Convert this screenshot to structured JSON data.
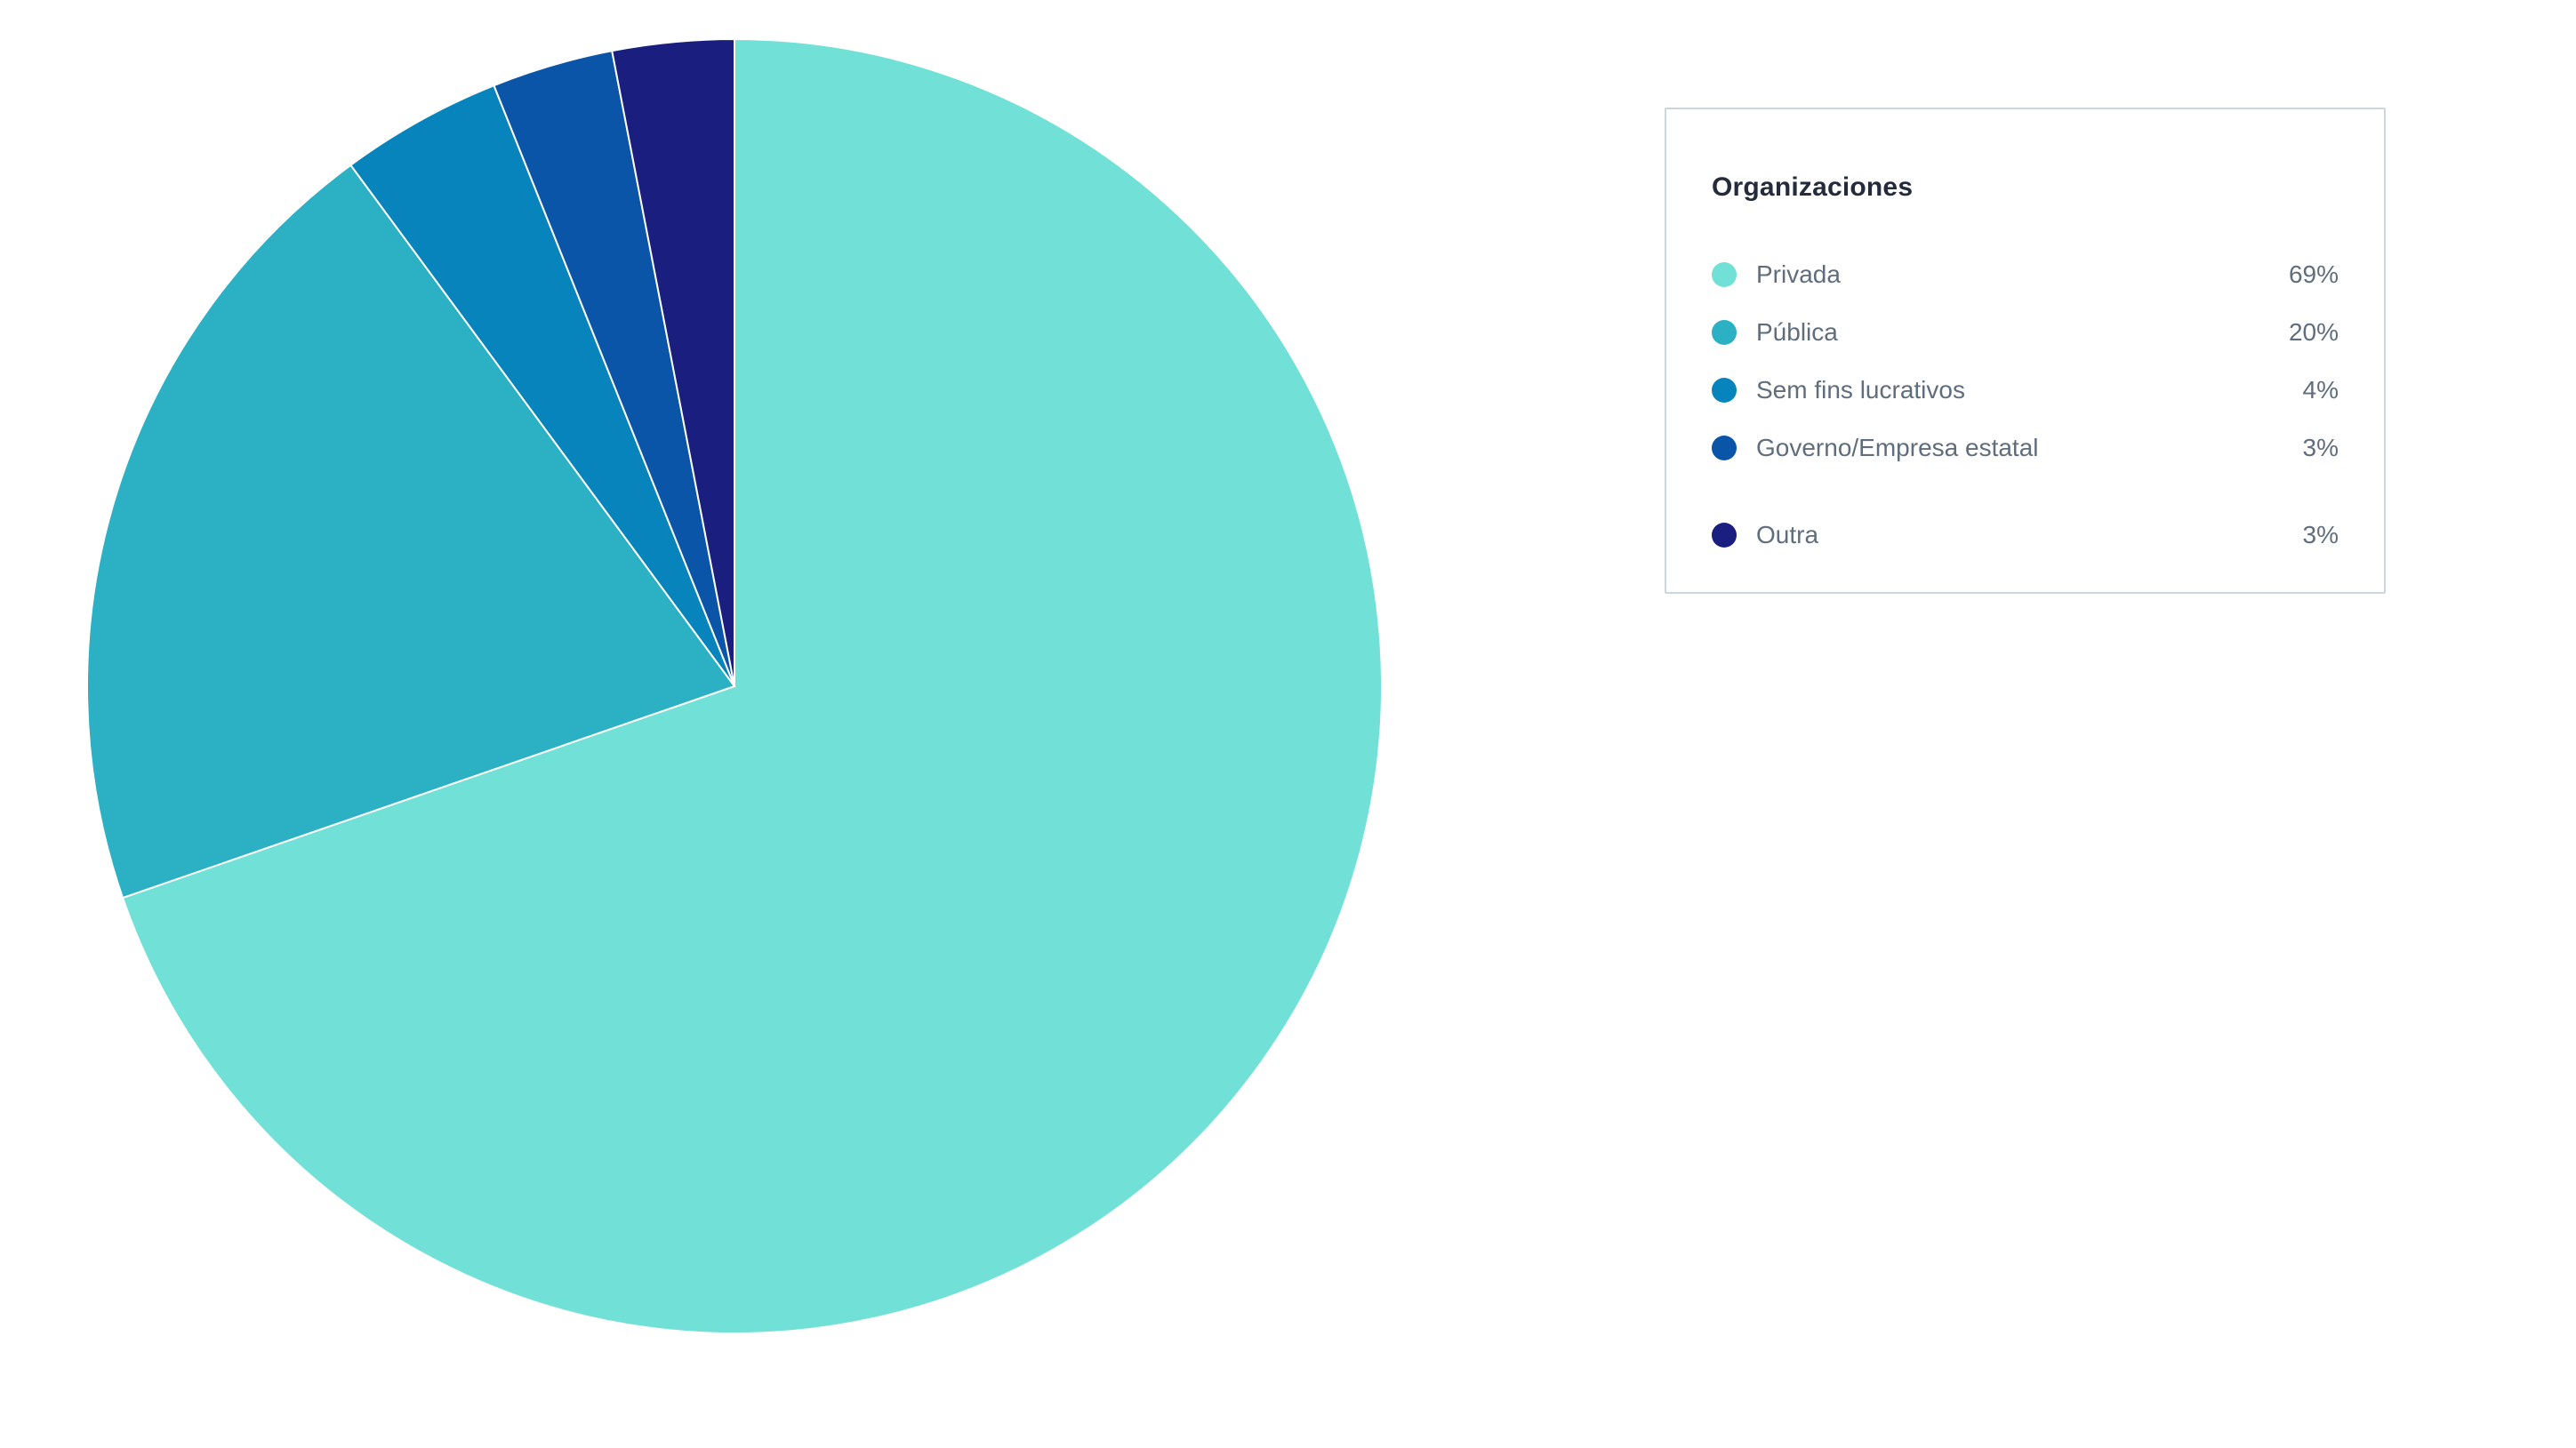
{
  "chart_data": {
    "type": "pie",
    "title": "Organizaciones",
    "categories": [
      "Privada",
      "Pública",
      "Sem fins lucrativos",
      "Governo/Empresa estatal",
      "Outra"
    ],
    "values": [
      69,
      20,
      4,
      3,
      3
    ],
    "value_labels": [
      "69%",
      "20%",
      "4%",
      "3%",
      "3%"
    ],
    "colors": [
      "#71E0D7",
      "#2BB0C4",
      "#0884BC",
      "#0A55A7",
      "#1A1F7F"
    ],
    "start_angle": "top",
    "direction": "clockwise",
    "slice_border_color": "#FFFFFF",
    "legend_position": "right"
  },
  "legend": {
    "title": "Organizaciones",
    "border_color": "#CBD6DD",
    "title_color": "#242B3B",
    "text_color": "#5F6D7C",
    "items": [
      {
        "label": "Privada",
        "value": "69%",
        "color": "#71E0D7"
      },
      {
        "label": "Pública",
        "value": "20%",
        "color": "#2BB0C4"
      },
      {
        "label": "Sem fins lucrativos",
        "value": "4%",
        "color": "#0884BC"
      },
      {
        "label": "Governo/Empresa estatal",
        "value": "3%",
        "color": "#0A55A7"
      },
      {
        "label": "Outra",
        "value": "3%",
        "color": "#1A1F7F"
      }
    ]
  }
}
